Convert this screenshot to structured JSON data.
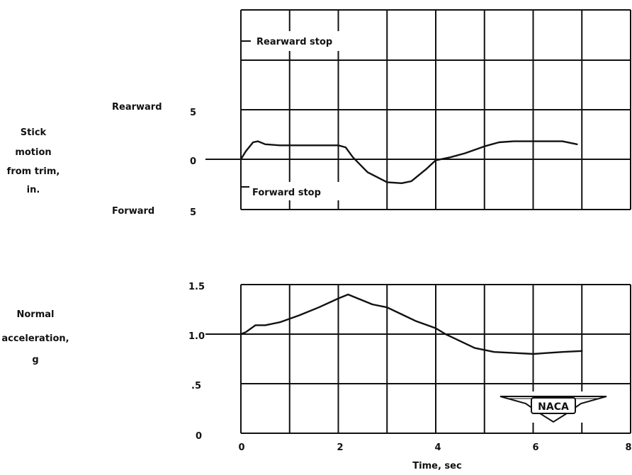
{
  "chart_data": [
    {
      "type": "line",
      "ylabel": [
        "Stick",
        "motion",
        "from trim,",
        "in."
      ],
      "direction_labels": {
        "top": "Rearward",
        "bottom": "Forward"
      },
      "y_tick_labels": [
        "5",
        "0",
        "5"
      ],
      "annotations": {
        "rearward_stop": "Rearward stop",
        "forward_stop": "Forward stop"
      },
      "xlim": [
        0,
        8
      ],
      "ylim": [
        -5,
        10
      ],
      "grid": true,
      "series": [
        {
          "x": [
            0,
            0.1,
            0.25,
            0.35,
            0.5,
            0.8,
            1.2,
            1.6,
            2.0,
            2.15,
            2.3,
            2.6,
            3.0,
            3.3,
            3.5,
            3.8,
            4.0,
            4.3,
            4.6,
            5.0,
            5.3,
            5.6,
            6.0,
            6.4,
            6.6,
            6.9
          ],
          "y": [
            0,
            0.8,
            1.7,
            1.8,
            1.5,
            1.4,
            1.4,
            1.4,
            1.4,
            1.2,
            0.2,
            -1.3,
            -2.3,
            -2.4,
            -2.2,
            -1.0,
            -0.1,
            0.2,
            0.6,
            1.3,
            1.7,
            1.8,
            1.8,
            1.8,
            1.8,
            1.5
          ]
        }
      ]
    },
    {
      "type": "line",
      "ylabel": [
        "Normal",
        "acceleration,",
        "g"
      ],
      "xlabel": "Time, sec",
      "x_tick_labels": [
        "0",
        "2",
        "4",
        "6",
        "8"
      ],
      "y_tick_labels": [
        "1.5",
        "1.0",
        ".5",
        "0"
      ],
      "xlim": [
        0,
        8
      ],
      "ylim": [
        0,
        1.5
      ],
      "grid": true,
      "series": [
        {
          "x": [
            0,
            0.1,
            0.3,
            0.5,
            0.8,
            1.2,
            1.6,
            2.0,
            2.2,
            2.4,
            2.7,
            3.0,
            3.3,
            3.6,
            4.0,
            4.2,
            4.5,
            4.8,
            5.2,
            5.6,
            6.0,
            6.3,
            6.6,
            7.0
          ],
          "y": [
            1.0,
            1.02,
            1.09,
            1.09,
            1.12,
            1.19,
            1.27,
            1.36,
            1.4,
            1.36,
            1.3,
            1.27,
            1.2,
            1.13,
            1.06,
            1.0,
            0.93,
            0.86,
            0.82,
            0.81,
            0.8,
            0.81,
            0.82,
            0.83
          ]
        }
      ]
    }
  ],
  "logo": {
    "text": "NACA"
  }
}
